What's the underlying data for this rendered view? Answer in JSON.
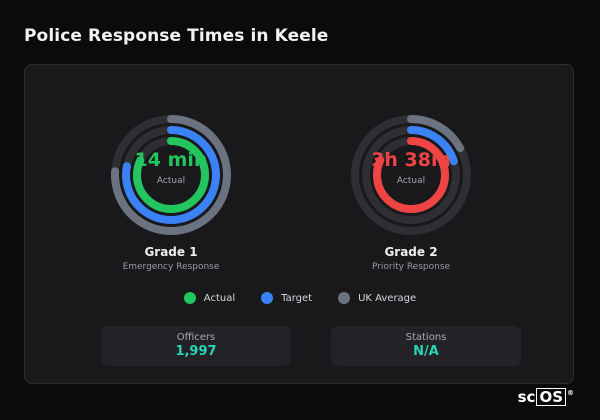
{
  "page": {
    "title": "Police Response Times in Keele"
  },
  "colors": {
    "actual": "#22c55e",
    "target": "#3b82f6",
    "uk_average": "#6b7280",
    "grade2_actual": "#ef4444",
    "track": "#2e2e33",
    "stat_value": "#2ad4b4"
  },
  "gauges": [
    {
      "value": "14 min",
      "sub_label": "Actual",
      "title": "Grade 1",
      "subtitle": "Emergency Response",
      "actual_fraction": 0.82,
      "target_fraction": 0.78,
      "uk_average_fraction": 0.76
    },
    {
      "value": "3h 38m",
      "sub_label": "Actual",
      "title": "Grade 2",
      "subtitle": "Priority Response",
      "actual_fraction": 0.82,
      "target_fraction": 0.2,
      "uk_average_fraction": 0.17
    }
  ],
  "legend": [
    {
      "label": "Actual",
      "color": "#22c55e"
    },
    {
      "label": "Target",
      "color": "#3b82f6"
    },
    {
      "label": "UK Average",
      "color": "#6b7280"
    }
  ],
  "stats": [
    {
      "label": "Officers",
      "value": "1,997"
    },
    {
      "label": "Stations",
      "value": "N/A"
    }
  ],
  "brand": {
    "prefix": "sc",
    "boxed": "OS",
    "reg": "®"
  }
}
